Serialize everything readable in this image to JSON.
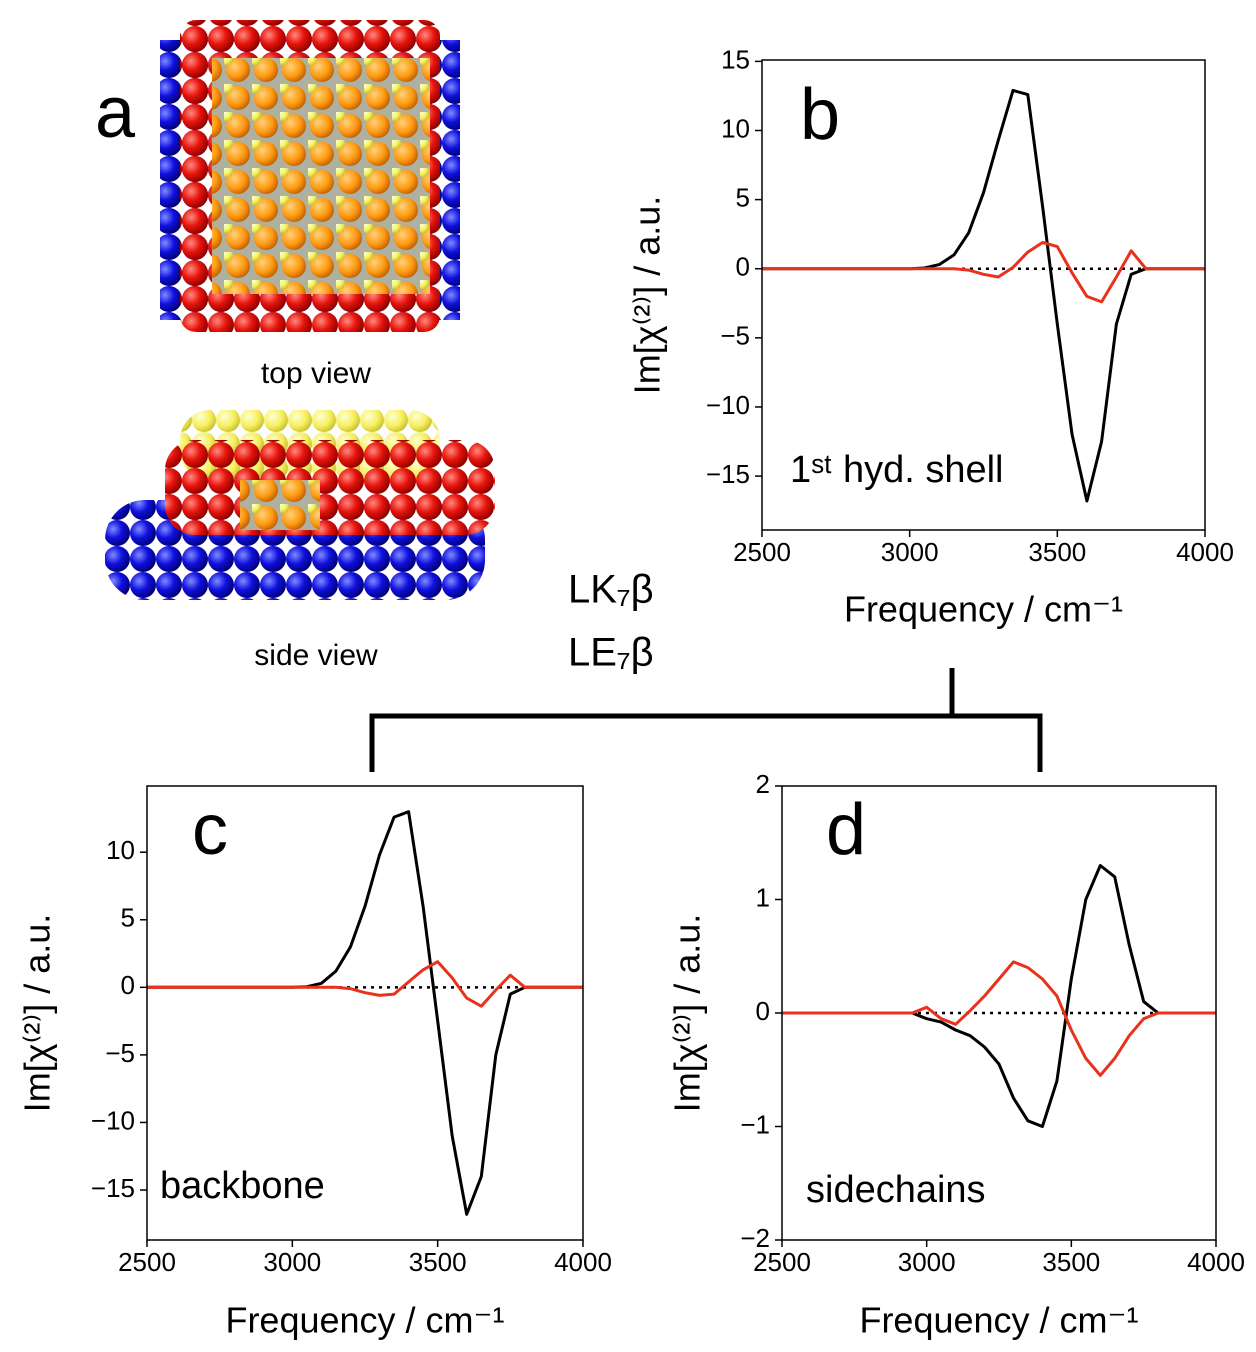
{
  "panel_a": {
    "label": "a",
    "captions": [
      "top view",
      "side view"
    ]
  },
  "chart_data": [
    {
      "type": "line",
      "panel_label": "b",
      "annotation": "1ˢᵗ hyd. shell",
      "xlabel": "Frequency / cm⁻¹",
      "ylabel": "Im[χ⁽²⁾] / a.u.",
      "x": [
        2500,
        2550,
        2600,
        2650,
        2700,
        2750,
        2800,
        2850,
        2900,
        2950,
        3000,
        3050,
        3100,
        3150,
        3200,
        3250,
        3300,
        3350,
        3400,
        3450,
        3500,
        3550,
        3600,
        3650,
        3700,
        3750,
        3800,
        3850,
        3900,
        3950,
        4000
      ],
      "xlim": [
        2500,
        4000
      ],
      "xticks": [
        2500,
        3000,
        3500,
        4000
      ],
      "ylim": [
        -18.9,
        15.1
      ],
      "yticks": [
        {
          "value": -15,
          "label": "−15"
        },
        {
          "value": -10,
          "label": "−10"
        },
        {
          "value": -5,
          "label": "−5"
        },
        0,
        5,
        10,
        15
      ],
      "hline": 0,
      "series": [
        {
          "name": "LK₇β",
          "color": "#000000",
          "values": [
            0,
            0,
            0,
            0,
            0,
            0,
            0,
            0,
            0,
            0,
            0,
            0.05,
            0.3,
            1.0,
            2.6,
            5.5,
            9.3,
            12.9,
            12.6,
            4.5,
            -4.0,
            -12.0,
            -16.8,
            -12.5,
            -4.0,
            -0.4,
            0,
            0,
            0,
            0,
            0
          ]
        },
        {
          "name": "LE₇β",
          "color": "#e8321e",
          "values": [
            0,
            0,
            0,
            0,
            0,
            0,
            0,
            0,
            0,
            0,
            0,
            0,
            0,
            0,
            -0.1,
            -0.4,
            -0.6,
            0.1,
            1.2,
            1.9,
            1.6,
            -0.3,
            -2.0,
            -2.4,
            -0.6,
            1.3,
            0,
            0,
            0,
            0,
            0
          ]
        }
      ]
    },
    {
      "type": "line",
      "panel_label": "c",
      "annotation": "backbone",
      "xlabel": "Frequency / cm⁻¹",
      "ylabel": "Im[χ⁽²⁾] / a.u.",
      "x": [
        2500,
        2550,
        2600,
        2650,
        2700,
        2750,
        2800,
        2850,
        2900,
        2950,
        3000,
        3050,
        3100,
        3150,
        3200,
        3250,
        3300,
        3350,
        3400,
        3450,
        3500,
        3550,
        3600,
        3650,
        3700,
        3750,
        3800,
        3850,
        3900,
        3950,
        4000
      ],
      "xlim": [
        2500,
        4000
      ],
      "xticks": [
        2500,
        3000,
        3500,
        4000
      ],
      "ylim": [
        -18.7,
        14.9
      ],
      "yticks": [
        {
          "value": -15,
          "label": "−15"
        },
        {
          "value": -10,
          "label": "−10"
        },
        {
          "value": -5,
          "label": "−5"
        },
        0,
        5,
        10
      ],
      "hline": 0,
      "series": [
        {
          "color": "#000000",
          "values": [
            0,
            0,
            0,
            0,
            0,
            0,
            0,
            0,
            0,
            0,
            0,
            0.05,
            0.3,
            1.2,
            3.0,
            6.0,
            9.8,
            12.6,
            13.0,
            6.0,
            -2.5,
            -11.0,
            -16.8,
            -14.0,
            -5.0,
            -0.5,
            0,
            0,
            0,
            0,
            0
          ]
        },
        {
          "color": "#e8321e",
          "values": [
            0,
            0,
            0,
            0,
            0,
            0,
            0,
            0,
            0,
            0,
            0,
            0,
            0,
            0,
            -0.1,
            -0.4,
            -0.6,
            -0.5,
            0.4,
            1.3,
            1.9,
            0.7,
            -0.8,
            -1.4,
            -0.2,
            0.9,
            0,
            0,
            0,
            0,
            0
          ]
        }
      ]
    },
    {
      "type": "line",
      "panel_label": "d",
      "annotation": "sidechains",
      "xlabel": "Frequency / cm⁻¹",
      "ylabel": "Im[χ⁽²⁾] / a.u.",
      "x": [
        2500,
        2550,
        2600,
        2650,
        2700,
        2750,
        2800,
        2850,
        2900,
        2950,
        3000,
        3050,
        3100,
        3150,
        3200,
        3250,
        3300,
        3350,
        3400,
        3450,
        3500,
        3550,
        3600,
        3650,
        3700,
        3750,
        3800,
        3850,
        3900,
        3950,
        4000
      ],
      "xlim": [
        2500,
        4000
      ],
      "xticks": [
        2500,
        3000,
        3500,
        4000
      ],
      "ylim": [
        -2,
        2
      ],
      "yticks": [
        {
          "value": -2,
          "label": "−2"
        },
        {
          "value": -1,
          "label": "−1"
        },
        0,
        1,
        2
      ],
      "hline": 0,
      "series": [
        {
          "color": "#000000",
          "values": [
            0,
            0,
            0,
            0,
            0,
            0,
            0,
            0,
            0,
            0,
            -0.05,
            -0.08,
            -0.15,
            -0.2,
            -0.3,
            -0.45,
            -0.75,
            -0.95,
            -1.0,
            -0.6,
            0.3,
            1.0,
            1.3,
            1.2,
            0.6,
            0.1,
            0,
            0,
            0,
            0,
            0
          ]
        },
        {
          "color": "#e8321e",
          "values": [
            0,
            0,
            0,
            0,
            0,
            0,
            0,
            0,
            0,
            0,
            0.05,
            -0.05,
            -0.1,
            0.02,
            0.15,
            0.3,
            0.45,
            0.4,
            0.3,
            0.15,
            -0.15,
            -0.4,
            -0.55,
            -0.4,
            -0.2,
            -0.05,
            0,
            0,
            0,
            0,
            0
          ]
        }
      ]
    }
  ]
}
